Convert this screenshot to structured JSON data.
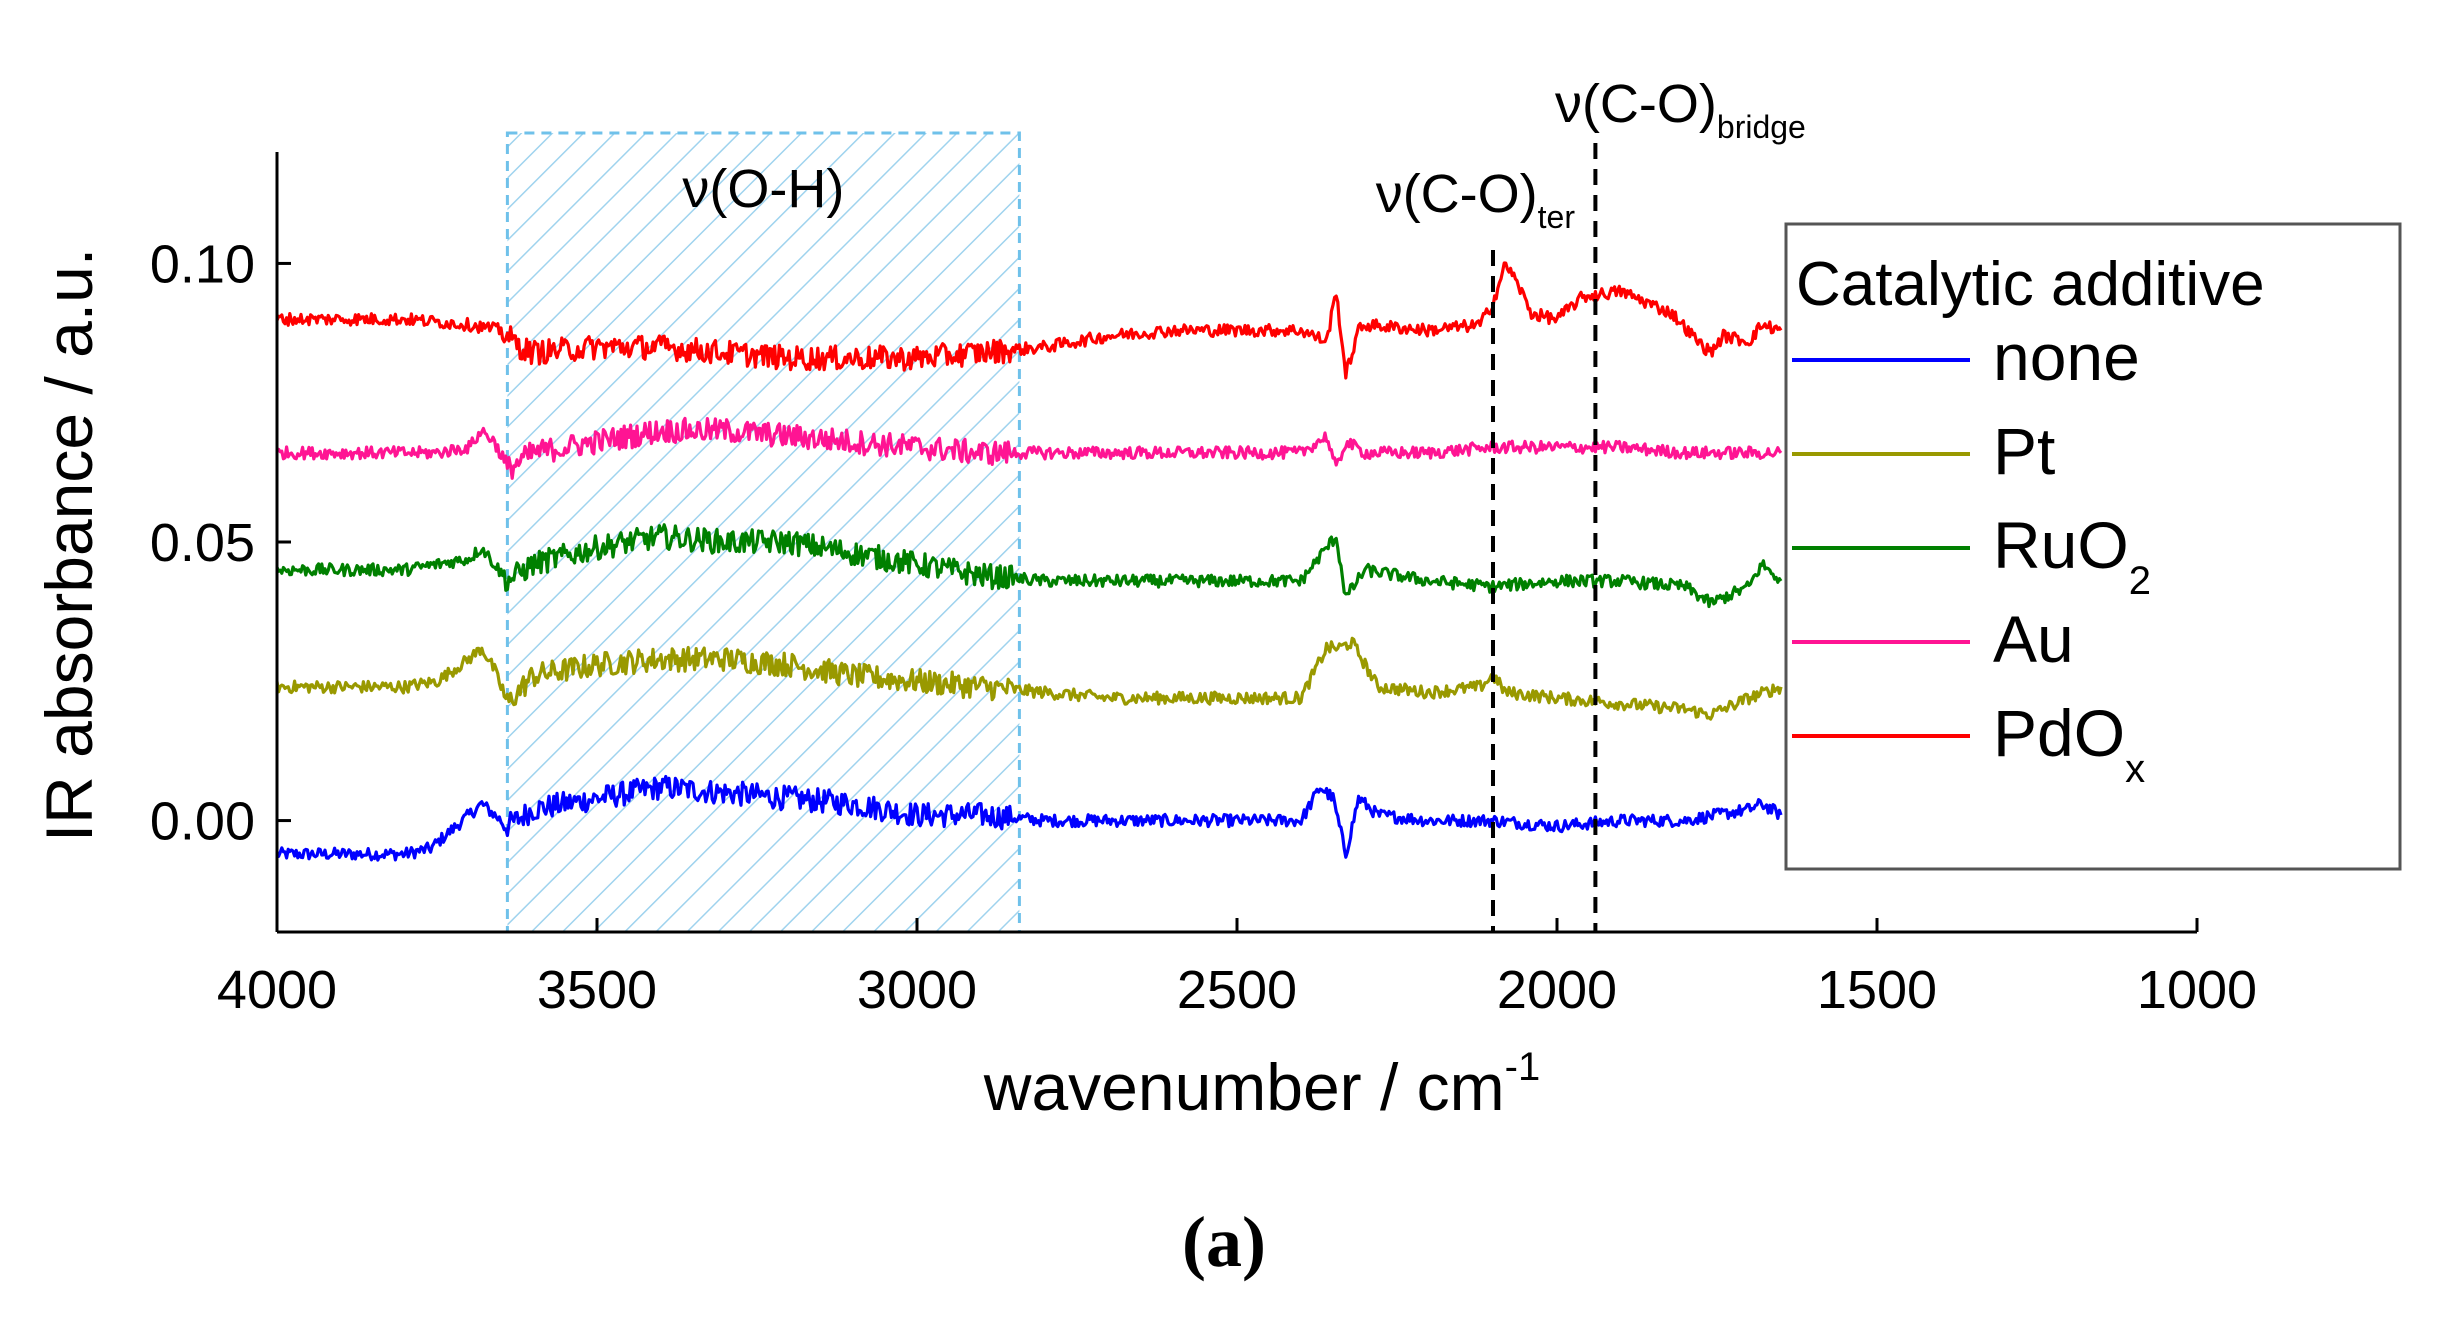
{
  "chart_data": {
    "type": "line",
    "ylabel": "IR absorbance / a.u.",
    "xlabel": {
      "main": "wavenumber / cm",
      "sup": "-1"
    },
    "xlim": [
      4000,
      1000
    ],
    "ylim": [
      -0.02,
      0.12
    ],
    "x_ticks": [
      4000,
      3500,
      3000,
      2500,
      2000,
      1500,
      1000
    ],
    "x_tick_labels": [
      "4000",
      "3500",
      "3000",
      "2500",
      "2000",
      "1500",
      "1000"
    ],
    "y_ticks": [
      0.0,
      0.05,
      0.1
    ],
    "y_tick_labels": [
      "0.00",
      "0.05",
      "0.10"
    ],
    "grid": false,
    "legend": {
      "title": "Catalytic additive",
      "placement": "right",
      "entries": [
        {
          "main": "none",
          "sub": ""
        },
        {
          "main": "Pt",
          "sub": ""
        },
        {
          "main": "RuO",
          "sub": "2"
        },
        {
          "main": "Au",
          "sub": ""
        },
        {
          "main": "PdO",
          "sub": "x"
        }
      ]
    },
    "series": [
      {
        "name": "none",
        "color": "#0000ff",
        "x": [
          4000,
          3800,
          3760,
          3720,
          3680,
          3640,
          3600,
          3500,
          3400,
          3300,
          3200,
          3100,
          3000,
          2900,
          2800,
          2700,
          2600,
          2500,
          2400,
          2370,
          2350,
          2330,
          2310,
          2280,
          2200,
          2100,
          2000,
          1900,
          1800,
          1700,
          1680,
          1650
        ],
        "y": [
          -0.006,
          -0.006,
          -0.005,
          -0.001,
          0.003,
          -0.001,
          0.002,
          0.004,
          0.006,
          0.005,
          0.004,
          0.003,
          0.001,
          0.001,
          0.0,
          0.0,
          0.0,
          0.0,
          0.0,
          0.006,
          0.004,
          -0.006,
          0.004,
          0.001,
          0.0,
          0.0,
          -0.001,
          0.0,
          0.0,
          0.002,
          0.003,
          0.001
        ]
      },
      {
        "name": "Pt",
        "color": "#999900",
        "x": [
          4000,
          3800,
          3750,
          3700,
          3680,
          3660,
          3640,
          3600,
          3500,
          3400,
          3300,
          3200,
          3100,
          3000,
          2900,
          2800,
          2700,
          2600,
          2500,
          2400,
          2360,
          2340,
          2320,
          2300,
          2280,
          2200,
          2120,
          2100,
          2080,
          2000,
          1900,
          1800,
          1760,
          1700,
          1650
        ],
        "y": [
          0.024,
          0.024,
          0.025,
          0.029,
          0.031,
          0.027,
          0.021,
          0.026,
          0.028,
          0.029,
          0.029,
          0.028,
          0.026,
          0.025,
          0.024,
          0.023,
          0.022,
          0.022,
          0.022,
          0.022,
          0.031,
          0.031,
          0.032,
          0.028,
          0.024,
          0.023,
          0.024,
          0.026,
          0.023,
          0.022,
          0.021,
          0.02,
          0.019,
          0.022,
          0.024
        ]
      },
      {
        "name": "RuO2",
        "color": "#008000",
        "x": [
          4000,
          3800,
          3750,
          3700,
          3680,
          3660,
          3640,
          3600,
          3500,
          3400,
          3300,
          3200,
          3100,
          3000,
          2900,
          2800,
          2700,
          2600,
          2500,
          2400,
          2360,
          2345,
          2330,
          2300,
          2200,
          2100,
          2000,
          1900,
          1800,
          1760,
          1700,
          1680,
          1650
        ],
        "y": [
          0.045,
          0.045,
          0.046,
          0.047,
          0.049,
          0.046,
          0.043,
          0.046,
          0.049,
          0.051,
          0.05,
          0.05,
          0.048,
          0.046,
          0.044,
          0.043,
          0.043,
          0.043,
          0.043,
          0.043,
          0.049,
          0.051,
          0.04,
          0.045,
          0.043,
          0.042,
          0.043,
          0.043,
          0.042,
          0.039,
          0.042,
          0.046,
          0.043
        ]
      },
      {
        "name": "Au",
        "color": "#ff1493",
        "x": [
          4000,
          3800,
          3750,
          3700,
          3680,
          3660,
          3640,
          3600,
          3500,
          3400,
          3300,
          3200,
          3100,
          3000,
          2900,
          2800,
          2700,
          2600,
          2500,
          2400,
          2360,
          2345,
          2330,
          2300,
          2200,
          2100,
          2000,
          1900,
          1800,
          1700,
          1650
        ],
        "y": [
          0.066,
          0.066,
          0.066,
          0.067,
          0.07,
          0.068,
          0.063,
          0.066,
          0.068,
          0.07,
          0.07,
          0.069,
          0.068,
          0.067,
          0.066,
          0.066,
          0.066,
          0.066,
          0.066,
          0.066,
          0.069,
          0.063,
          0.068,
          0.066,
          0.066,
          0.067,
          0.067,
          0.067,
          0.066,
          0.066,
          0.066
        ]
      },
      {
        "name": "PdOx",
        "color": "#ff0000",
        "x": [
          4000,
          3800,
          3700,
          3650,
          3620,
          3600,
          3500,
          3400,
          3300,
          3200,
          3100,
          3000,
          2900,
          2800,
          2700,
          2600,
          2500,
          2400,
          2360,
          2345,
          2330,
          2310,
          2300,
          2200,
          2120,
          2100,
          2080,
          2060,
          2040,
          2000,
          1960,
          1900,
          1860,
          1820,
          1780,
          1760,
          1740,
          1700,
          1680,
          1650
        ],
        "y": [
          0.09,
          0.09,
          0.089,
          0.088,
          0.085,
          0.084,
          0.085,
          0.085,
          0.084,
          0.083,
          0.083,
          0.083,
          0.084,
          0.085,
          0.087,
          0.088,
          0.088,
          0.088,
          0.086,
          0.095,
          0.08,
          0.088,
          0.089,
          0.088,
          0.089,
          0.093,
          0.1,
          0.096,
          0.091,
          0.09,
          0.094,
          0.095,
          0.093,
          0.091,
          0.086,
          0.084,
          0.087,
          0.086,
          0.089,
          0.088
        ]
      }
    ],
    "annotations": [
      {
        "id": "oh-region",
        "type": "shaded-band",
        "x_range": [
          3640,
          2840
        ],
        "label_main": "ν(O-H)",
        "label_sub": ""
      },
      {
        "id": "co-ter",
        "type": "vline",
        "x": 2100,
        "label_main": "ν(C-O)",
        "label_sub": "ter"
      },
      {
        "id": "co-bridge",
        "type": "vline",
        "x": 1940,
        "label_main": "ν(C-O)",
        "label_sub": "bridge"
      }
    ],
    "panel_label": "(a)"
  }
}
